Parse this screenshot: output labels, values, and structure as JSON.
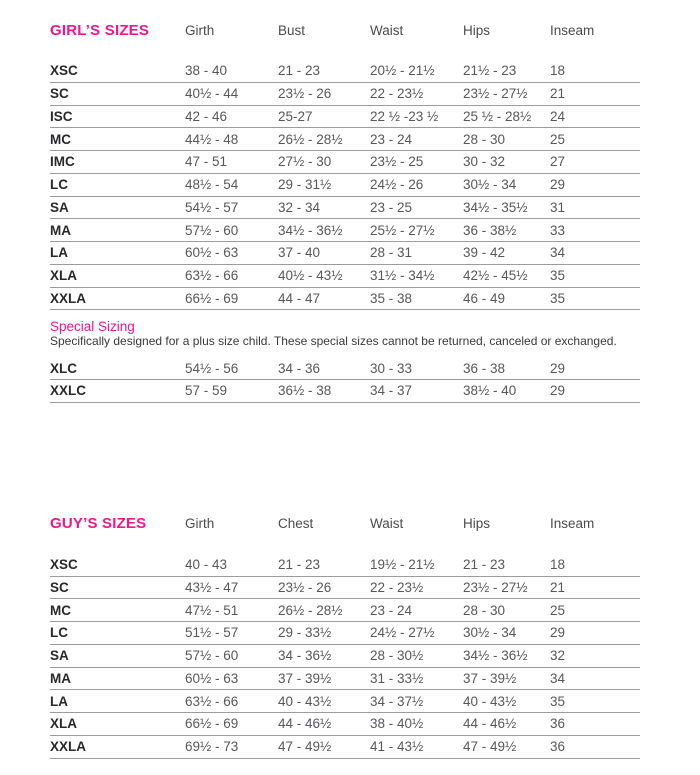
{
  "colors": {
    "accent_pink": "#F3158C",
    "row_line_gray": "#9c9c9c",
    "value_text_gray": "#58585b"
  },
  "girls": {
    "title": "GIRL’S SIZES",
    "columns": [
      "Girth",
      "Bust",
      "Waist",
      "Hips",
      "Inseam"
    ],
    "rows": [
      {
        "label": "XSC",
        "values": [
          "38 - 40",
          "21 - 23",
          "20½ - 21½",
          "21½ - 23",
          "18"
        ]
      },
      {
        "label": "SC",
        "values": [
          "40½ - 44",
          "23½ - 26",
          "22 - 23½",
          "23½ - 27½",
          "21"
        ]
      },
      {
        "label": "ISC",
        "values": [
          "42 - 46",
          "25-27",
          "22 ½ -23 ½",
          "25 ½ - 28½",
          "24"
        ]
      },
      {
        "label": "MC",
        "values": [
          "44½ - 48",
          "26½ - 28½",
          "23 - 24",
          "28 - 30",
          "25"
        ]
      },
      {
        "label": "IMC",
        "values": [
          "47 - 51",
          "27½ - 30",
          "23½ - 25",
          "30 - 32",
          "27"
        ]
      },
      {
        "label": "LC",
        "values": [
          "48½ - 54",
          "29 - 31½",
          "24½ - 26",
          "30½ - 34",
          "29"
        ]
      },
      {
        "label": "SA",
        "values": [
          "54½ - 57",
          "32 - 34",
          "23 - 25",
          "34½ - 35½",
          "31"
        ]
      },
      {
        "label": "MA",
        "values": [
          "57½ - 60",
          "34½ - 36½",
          "25½ - 27½",
          "36 - 38½",
          "33"
        ]
      },
      {
        "label": "LA",
        "values": [
          "60½ - 63",
          "37 - 40",
          "28 - 31",
          "39 - 42",
          "34"
        ]
      },
      {
        "label": "XLA",
        "values": [
          "63½ - 66",
          "40½ - 43½",
          "31½ - 34½",
          "42½ - 45½",
          "35"
        ]
      },
      {
        "label": "XXLA",
        "values": [
          "66½ - 69",
          "44 - 47",
          "35 - 38",
          "46 - 49",
          "35"
        ]
      }
    ],
    "special": {
      "title": "Special Sizing",
      "description": "Specifically designed for a plus size child. These special sizes cannot be returned, canceled or exchanged.",
      "rows": [
        {
          "label": "XLC",
          "values": [
            "54½ - 56",
            "34 - 36",
            "30 - 33",
            "36 - 38",
            "29"
          ]
        },
        {
          "label": "XXLC",
          "values": [
            "57 - 59",
            "36½ - 38",
            "34 - 37",
            "38½ - 40",
            "29"
          ]
        }
      ]
    }
  },
  "guys": {
    "title": "GUY’S SIZES",
    "columns": [
      "Girth",
      "Chest",
      "Waist",
      "Hips",
      "Inseam"
    ],
    "rows": [
      {
        "label": "XSC",
        "values": [
          "40 - 43",
          "21 - 23",
          "19½ - 21½",
          "21 - 23",
          "18"
        ]
      },
      {
        "label": "SC",
        "values": [
          "43½ - 47",
          "23½ - 26",
          "22 - 23½",
          "23½ - 27½",
          "21"
        ]
      },
      {
        "label": "MC",
        "values": [
          "47½ - 51",
          "26½ - 28½",
          "23 - 24",
          "28 - 30",
          "25"
        ]
      },
      {
        "label": "LC",
        "values": [
          "51½ - 57",
          "29 - 33½",
          "24½ - 27½",
          "30½ - 34",
          "29"
        ]
      },
      {
        "label": "SA",
        "values": [
          "57½ - 60",
          "34 - 36½",
          "28 - 30½",
          "34½ - 36½",
          "32"
        ]
      },
      {
        "label": "MA",
        "values": [
          "60½ - 63",
          "37 - 39½",
          "31 - 33½",
          "37 - 39½",
          "34"
        ]
      },
      {
        "label": "LA",
        "values": [
          "63½ - 66",
          "40 - 43½",
          "34 - 37½",
          "40 - 43½",
          "35"
        ]
      },
      {
        "label": "XLA",
        "values": [
          "66½ - 69",
          "44 - 46½",
          "38 - 40½",
          "44 - 46½",
          "36"
        ]
      },
      {
        "label": "XXLA",
        "values": [
          "69½ - 73",
          "47 - 49½",
          "41 - 43½",
          "47 - 49½",
          "36"
        ]
      }
    ]
  }
}
